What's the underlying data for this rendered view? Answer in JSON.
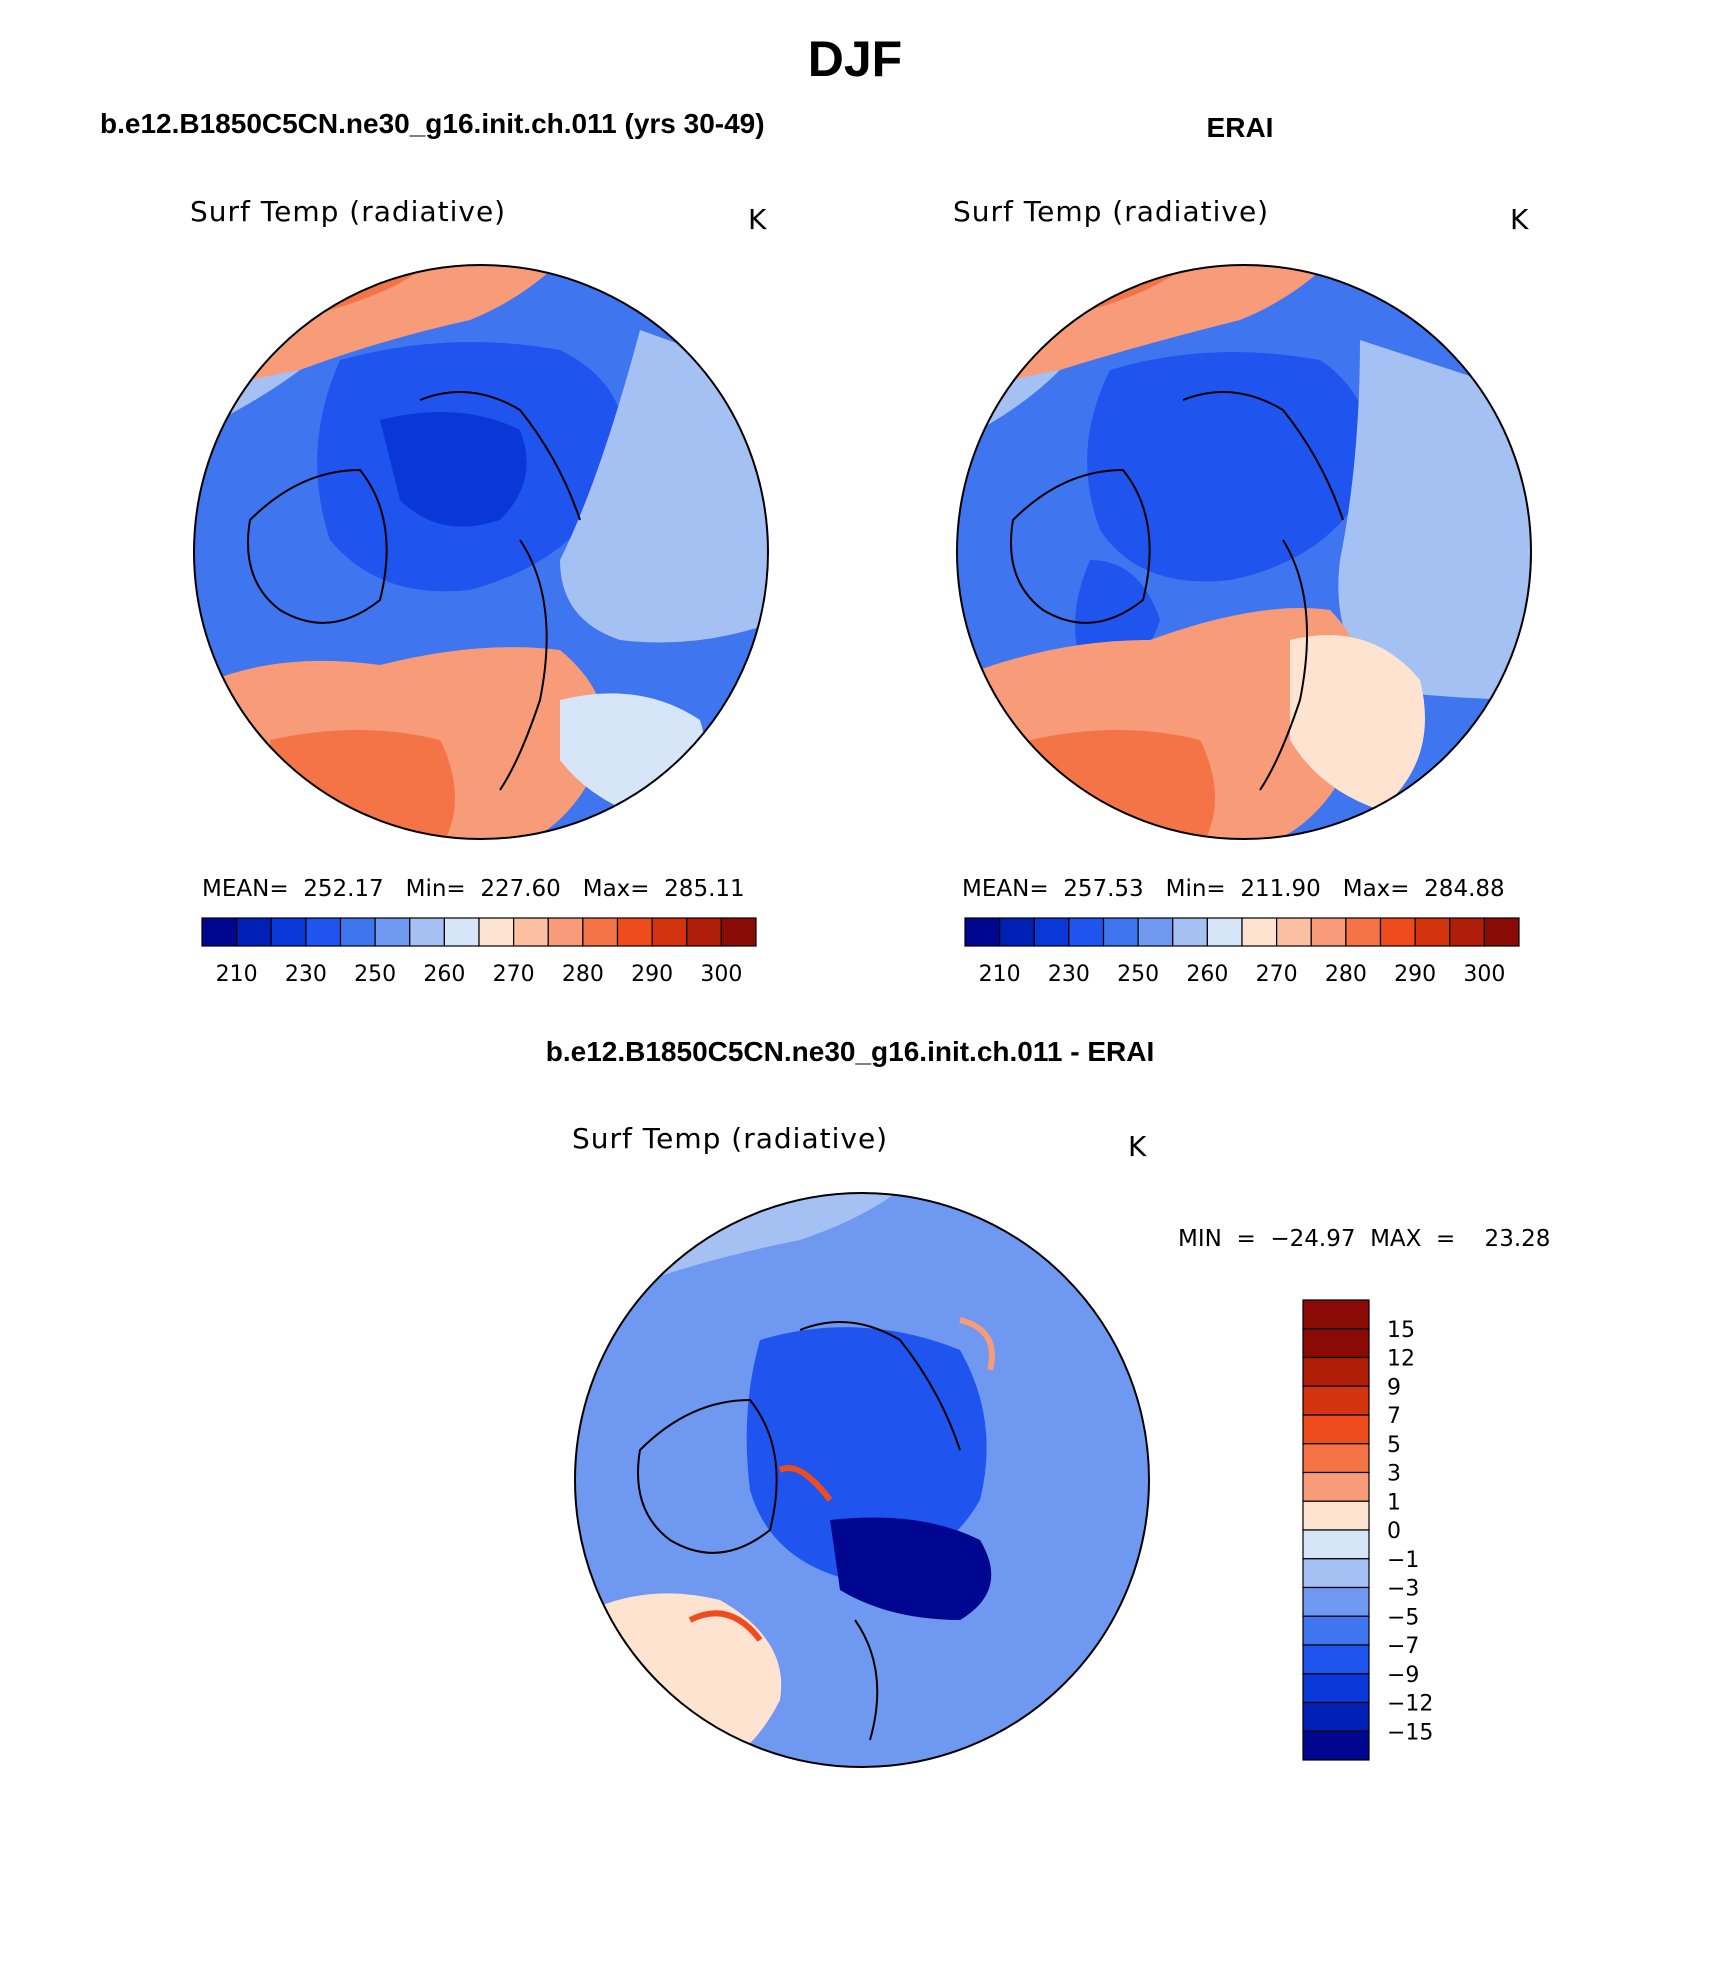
{
  "main_title": "DJF",
  "panels": [
    {
      "title": "b.e12.B1850C5CN.ne30_g16.init.ch.011 (yrs 30-49)",
      "variable": "Surf Temp (radiative)",
      "unit": "K",
      "stats": "MEAN=  252.17   Min=  227.60   Max=  285.11",
      "colorbar_labels": [
        "210",
        "230",
        "250",
        "260",
        "270",
        "280",
        "290",
        "300"
      ]
    },
    {
      "title": "ERAI",
      "variable": "Surf Temp (radiative)",
      "unit": "K",
      "stats": "MEAN=  257.53   Min=  211.90   Max=  284.88",
      "colorbar_labels": [
        "210",
        "230",
        "250",
        "260",
        "270",
        "280",
        "290",
        "300"
      ]
    },
    {
      "title": "b.e12.B1850C5CN.ne30_g16.init.ch.011 - ERAI",
      "variable": "Surf Temp (radiative)",
      "unit": "K",
      "stats": "MIN  =  −24.97  MAX  =    23.28",
      "colorbar_labels": [
        "15",
        "12",
        "9",
        "7",
        "5",
        "3",
        "1",
        "0",
        "−1",
        "−3",
        "−5",
        "−7",
        "−9",
        "−12",
        "−15"
      ]
    }
  ],
  "colors": {
    "abs_scale": [
      "#00068f",
      "#0020b5",
      "#0a38d8",
      "#1f55ee",
      "#3f75ef",
      "#6f98f0",
      "#a5c0f2",
      "#d6e6f8",
      "#fde3d0",
      "#fbbfa2",
      "#f79b79",
      "#f47447",
      "#ee4c1c",
      "#d3330d",
      "#b01e0a",
      "#8a0a06"
    ],
    "diff_scale": [
      "#8a0a06",
      "#b01e0a",
      "#d3330d",
      "#ee4c1c",
      "#f47447",
      "#f79b79",
      "#fde3d0",
      "#d6e6f8",
      "#a5c0f2",
      "#6f98f0",
      "#3f75ef",
      "#1f55ee",
      "#0a38d8",
      "#0020b5",
      "#00068f"
    ]
  }
}
